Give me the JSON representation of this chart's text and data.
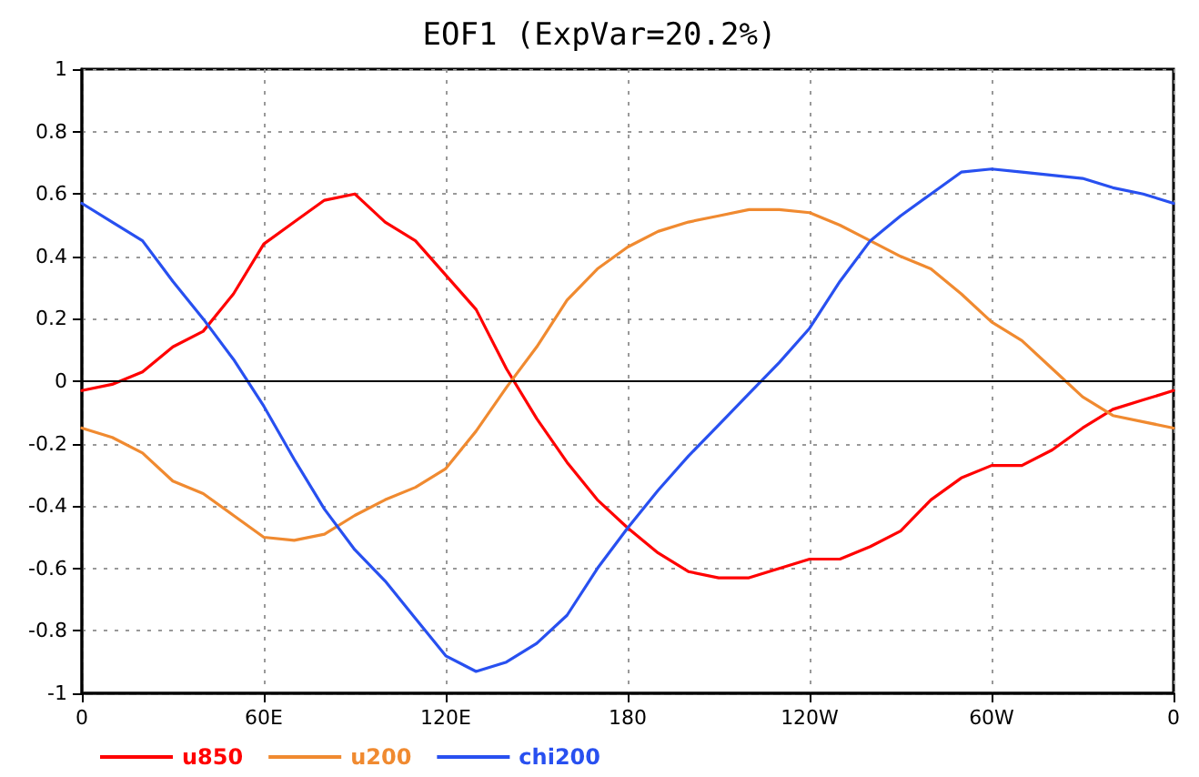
{
  "chart_data": {
    "type": "line",
    "title": "EOF1 (ExpVar=20.2%)",
    "categories": [
      "0",
      null,
      null,
      null,
      null,
      null,
      "60E",
      null,
      null,
      null,
      null,
      null,
      "120E",
      null,
      null,
      null,
      null,
      null,
      "180",
      null,
      null,
      null,
      null,
      null,
      "120W",
      null,
      null,
      null,
      null,
      null,
      "60W",
      null,
      null,
      null,
      null,
      null,
      "0"
    ],
    "ylim": [
      -1,
      1
    ],
    "yticks": [
      -1,
      -0.8,
      -0.6,
      -0.4,
      -0.2,
      0,
      0.2,
      0.4,
      0.6,
      0.8,
      1
    ],
    "grid": true,
    "legend": "bottom left",
    "marker": "none",
    "line_style": "solid",
    "ref_lines": [
      {
        "axis": "y",
        "value": 0,
        "color": "#000000"
      }
    ],
    "series": [
      {
        "name": "u850",
        "color": "#ff0000",
        "values": [
          -0.03,
          -0.01,
          0.03,
          0.11,
          0.16,
          0.28,
          0.44,
          0.51,
          0.58,
          0.6,
          0.51,
          0.45,
          0.34,
          0.23,
          0.04,
          -0.12,
          -0.26,
          -0.38,
          -0.47,
          -0.55,
          -0.61,
          -0.63,
          -0.63,
          -0.6,
          -0.57,
          -0.57,
          -0.53,
          -0.48,
          -0.38,
          -0.31,
          -0.27,
          -0.27,
          -0.22,
          -0.15,
          -0.09,
          -0.06,
          -0.03
        ]
      },
      {
        "name": "u200",
        "color": "#f08a30",
        "values": [
          -0.15,
          -0.18,
          -0.23,
          -0.32,
          -0.36,
          -0.43,
          -0.5,
          -0.51,
          -0.49,
          -0.43,
          -0.38,
          -0.34,
          -0.28,
          -0.16,
          -0.02,
          0.11,
          0.26,
          0.36,
          0.43,
          0.48,
          0.51,
          0.53,
          0.55,
          0.55,
          0.54,
          0.5,
          0.45,
          0.4,
          0.36,
          0.28,
          0.19,
          0.13,
          0.04,
          -0.05,
          -0.11,
          -0.13,
          -0.15
        ]
      },
      {
        "name": "chi200",
        "color": "#2850f0",
        "values": [
          0.57,
          0.51,
          0.45,
          0.32,
          0.2,
          0.07,
          -0.08,
          -0.25,
          -0.41,
          -0.54,
          -0.64,
          -0.76,
          -0.88,
          -0.93,
          -0.9,
          -0.84,
          -0.75,
          -0.6,
          -0.47,
          -0.35,
          -0.24,
          -0.14,
          -0.04,
          0.06,
          0.17,
          0.32,
          0.45,
          0.53,
          0.6,
          0.67,
          0.68,
          0.67,
          0.66,
          0.65,
          0.62,
          0.6,
          0.57
        ]
      }
    ]
  }
}
